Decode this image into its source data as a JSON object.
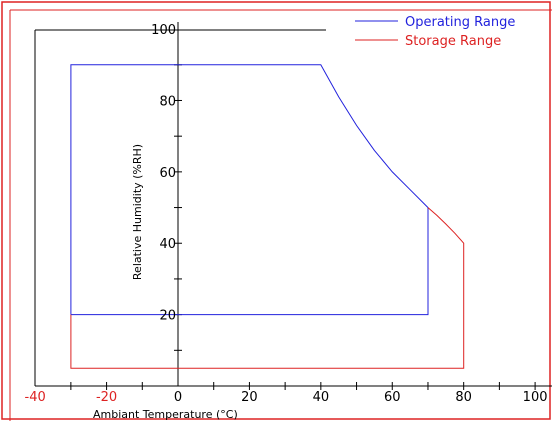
{
  "chart_data": {
    "type": "line",
    "title": "",
    "xlabel": "Ambiant Temperature (°C)",
    "ylabel": "Relative Humidity  (%RH)",
    "xlim": [
      -40,
      100
    ],
    "ylim": [
      0,
      100
    ],
    "x_ticks": [
      "-40",
      "-20",
      "0",
      "20",
      "40",
      "60",
      "80",
      "100"
    ],
    "y_ticks": [
      "20",
      "40",
      "60",
      "80",
      "100"
    ],
    "legend_position": "top-right",
    "series": [
      {
        "name": "Operating Range",
        "color": "#2222dd",
        "points": [
          [
            -30,
            20
          ],
          [
            -30,
            90
          ],
          [
            40,
            90
          ],
          [
            45,
            81
          ],
          [
            50,
            73
          ],
          [
            55,
            66
          ],
          [
            60,
            60
          ],
          [
            65,
            55
          ],
          [
            70,
            50
          ],
          [
            70,
            20
          ],
          [
            -30,
            20
          ]
        ]
      },
      {
        "name": "Storage Range",
        "color": "#dd2222",
        "points": [
          [
            -30,
            20
          ],
          [
            -30,
            5
          ],
          [
            80,
            5
          ],
          [
            80,
            40
          ],
          [
            77.5,
            42.8
          ],
          [
            75,
            45.4
          ],
          [
            72.5,
            47.8
          ],
          [
            70,
            50
          ]
        ]
      }
    ],
    "frame_color": "#dd2222",
    "axis_color": "#000000",
    "tick_label_colors": {
      "negative": "#dd2222",
      "positive": "#000000"
    }
  }
}
